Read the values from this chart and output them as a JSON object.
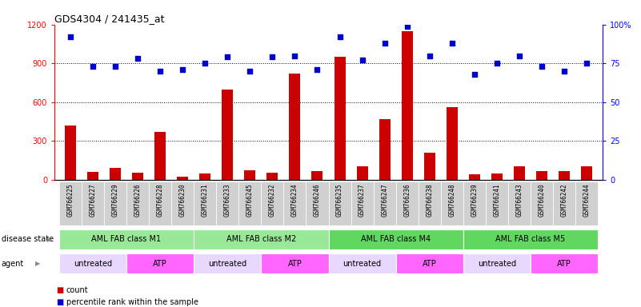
{
  "title": "GDS4304 / 241435_at",
  "samples": [
    "GSM766225",
    "GSM766227",
    "GSM766229",
    "GSM766226",
    "GSM766228",
    "GSM766230",
    "GSM766231",
    "GSM766233",
    "GSM766245",
    "GSM766232",
    "GSM766234",
    "GSM766246",
    "GSM766235",
    "GSM766237",
    "GSM766247",
    "GSM766236",
    "GSM766238",
    "GSM766248",
    "GSM766239",
    "GSM766241",
    "GSM766243",
    "GSM766240",
    "GSM766242",
    "GSM766244"
  ],
  "count_values": [
    420,
    60,
    90,
    55,
    370,
    25,
    45,
    700,
    75,
    55,
    820,
    65,
    950,
    100,
    470,
    1150,
    210,
    560,
    40,
    50,
    100,
    65,
    65,
    105
  ],
  "percentile_values": [
    92,
    73,
    73,
    78,
    70,
    71,
    75,
    79,
    70,
    79,
    80,
    71,
    92,
    77,
    88,
    99,
    80,
    88,
    68,
    75,
    80,
    73,
    70,
    75
  ],
  "bar_color": "#CC0000",
  "scatter_color": "#0000CC",
  "ylim_left": [
    0,
    1200
  ],
  "ylim_right": [
    0,
    100
  ],
  "yticks_left": [
    0,
    300,
    600,
    900,
    1200
  ],
  "yticks_right": [
    0,
    25,
    50,
    75,
    100
  ],
  "ytick_right_labels": [
    "0",
    "25",
    "50",
    "75",
    "100%"
  ],
  "grid_values": [
    300,
    600,
    900
  ],
  "disease_state_groups": [
    {
      "label": "AML FAB class M1",
      "start": 0,
      "end": 5,
      "color": "#98E898"
    },
    {
      "label": "AML FAB class M2",
      "start": 6,
      "end": 11,
      "color": "#98E898"
    },
    {
      "label": "AML FAB class M4",
      "start": 12,
      "end": 17,
      "color": "#60D860"
    },
    {
      "label": "AML FAB class M5",
      "start": 18,
      "end": 23,
      "color": "#60D860"
    }
  ],
  "agent_groups": [
    {
      "label": "untreated",
      "start": 0,
      "end": 2,
      "color": "#E8D8FF"
    },
    {
      "label": "ATP",
      "start": 3,
      "end": 5,
      "color": "#FF66FF"
    },
    {
      "label": "untreated",
      "start": 6,
      "end": 8,
      "color": "#E8D8FF"
    },
    {
      "label": "ATP",
      "start": 9,
      "end": 11,
      "color": "#FF66FF"
    },
    {
      "label": "untreated",
      "start": 12,
      "end": 14,
      "color": "#E8D8FF"
    },
    {
      "label": "ATP",
      "start": 15,
      "end": 17,
      "color": "#FF66FF"
    },
    {
      "label": "untreated",
      "start": 18,
      "end": 20,
      "color": "#E8D8FF"
    },
    {
      "label": "ATP",
      "start": 21,
      "end": 23,
      "color": "#FF66FF"
    }
  ],
  "legend_count_label": "count",
  "legend_pct_label": "percentile rank within the sample",
  "plot_bg_color": "#FFFFFF",
  "xtick_bg_color": "#D0D0D0"
}
